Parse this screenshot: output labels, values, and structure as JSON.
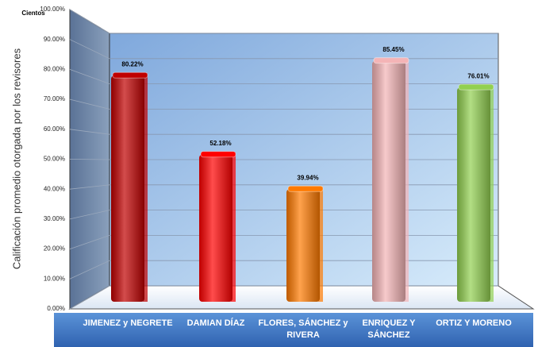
{
  "chart_data": {
    "type": "bar",
    "y_axis_label": "Calificación promedio otorgada por los revisores",
    "display_units": "Cientos",
    "categories": [
      "JIMENEZ y NEGRETE",
      "DAMIAN DÍAZ",
      "FLORES, SÁNCHEZ y RIVERA",
      "ENRIQUEZ Y SÁNCHEZ",
      "ORTIZ Y MORENO"
    ],
    "values": [
      80.22,
      52.18,
      39.94,
      85.45,
      76.01
    ],
    "value_labels": [
      "80.22%",
      "52.18%",
      "39.94%",
      "85.45%",
      "76.01%"
    ],
    "colors": [
      "#c00000",
      "#ff0000",
      "#ff7a00",
      "#f4b4b6",
      "#92d050"
    ],
    "ylim": [
      0,
      100
    ],
    "yticks": [
      {
        "value": 0,
        "label": "0.00%"
      },
      {
        "value": 10,
        "label": "10.00%"
      },
      {
        "value": 20,
        "label": "20.00%"
      },
      {
        "value": 30,
        "label": "30.00%"
      },
      {
        "value": 40,
        "label": "40.00%"
      },
      {
        "value": 50,
        "label": "50.00%"
      },
      {
        "value": 60,
        "label": "60.00%"
      },
      {
        "value": 70,
        "label": "70.00%"
      },
      {
        "value": 80,
        "label": "80.00%"
      },
      {
        "value": 90,
        "label": "90.00%"
      },
      {
        "value": 100,
        "label": "100.00%"
      }
    ],
    "grid": true
  }
}
